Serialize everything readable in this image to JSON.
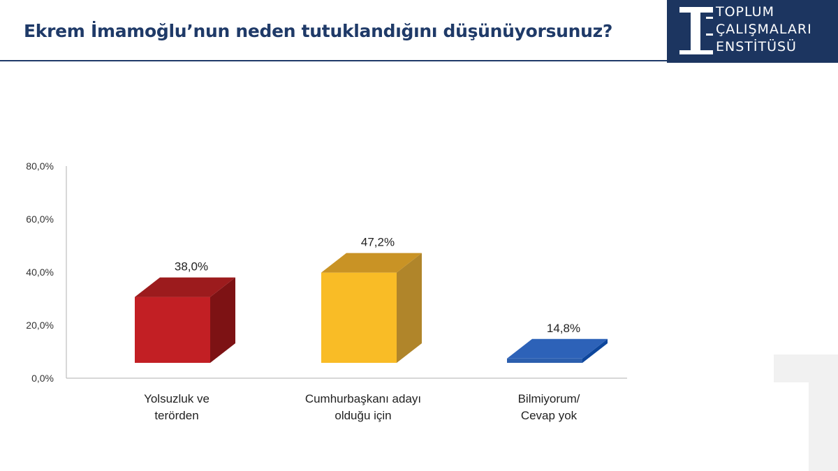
{
  "header": {
    "title": "Ekrem İmamoğlu’nun neden tutuklandığını düşünüyorsunuz?",
    "logo_lines": [
      "TOPLUM",
      "ÇALIŞMALARI",
      "ENSTİTÜSÜ"
    ]
  },
  "colors": {
    "title": "#1f3a68",
    "logo_bg": "#1c3560"
  },
  "chart_data": {
    "type": "bar",
    "style": "3d-bars",
    "categories": [
      [
        "Yolsuzluk ve",
        "terörden"
      ],
      [
        "Cumhurbaşkanı adayı",
        "olduğu için"
      ],
      [
        "Bilmiyorum/",
        "Cevap yok"
      ]
    ],
    "values": [
      38.0,
      47.2,
      14.8
    ],
    "value_labels": [
      "38,0%",
      "47,2%",
      "14,8%"
    ],
    "yticks": [
      0,
      20,
      40,
      60,
      80
    ],
    "ytick_labels": [
      "0,0%",
      "20,0%",
      "40,0%",
      "60,0%",
      "80,0%"
    ],
    "ylim": [
      0,
      80
    ],
    "grid": false,
    "legend": "none",
    "bar_colors": [
      {
        "front": "#c21f24",
        "side": "#7d1214",
        "top": "#9c1b1d"
      },
      {
        "front": "#f9bc26",
        "side": "#b0852a",
        "top": "#c99325"
      },
      {
        "front": "#2c5fae",
        "side": "#0d469c",
        "top": "#2d62b8"
      }
    ]
  }
}
